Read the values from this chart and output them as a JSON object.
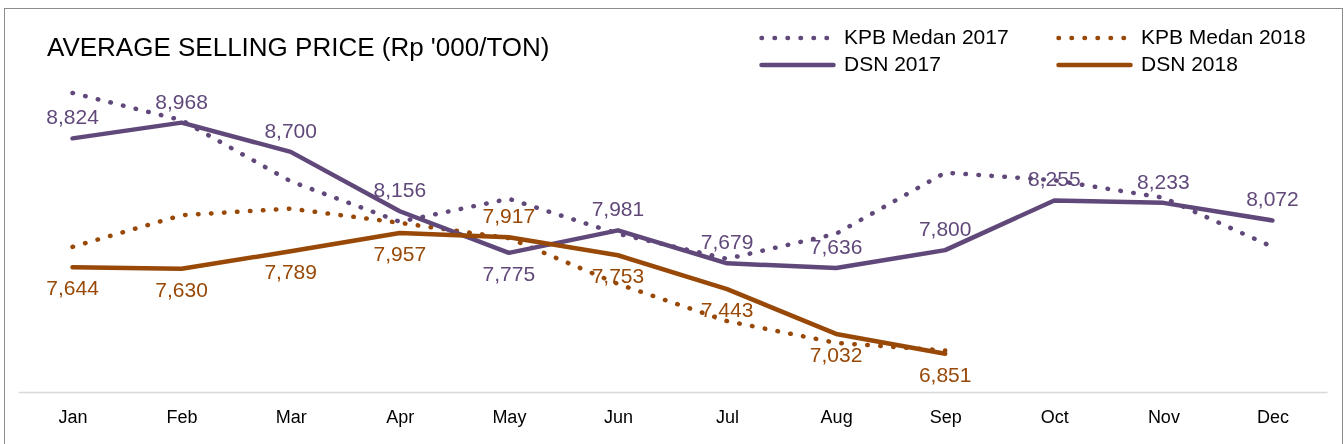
{
  "chart_data": {
    "type": "line",
    "title": "AVERAGE SELLING PRICE (Rp '000/TON)",
    "categories": [
      "Jan",
      "Feb",
      "Mar",
      "Apr",
      "May",
      "Jun",
      "Jul",
      "Aug",
      "Sep",
      "Oct",
      "Nov",
      "Dec"
    ],
    "series": [
      {
        "name": "KPB Medan 2017",
        "color": "#60497a",
        "line_style": "dotted",
        "values": [
          9240,
          8990,
          8430,
          8060,
          8270,
          7950,
          7720,
          7950,
          8510,
          8440,
          8280,
          7830
        ]
      },
      {
        "name": "KPB Medan 2018",
        "color": "#984807",
        "line_style": "dotted",
        "values": [
          7830,
          8120,
          8180,
          8050,
          7910,
          7490,
          7150,
          6950,
          6880,
          null,
          null,
          null
        ]
      },
      {
        "name": "DSN 2017",
        "color": "#60497a",
        "line_style": "solid",
        "values": [
          8824,
          8968,
          8700,
          8156,
          7775,
          7981,
          7679,
          7636,
          7800,
          8255,
          8233,
          8072
        ],
        "value_labels": [
          "8,824",
          "8,968",
          "8,700",
          "8,156",
          "7,775",
          "7,981",
          "7,679",
          "7,636",
          "7,800",
          "8,255",
          "8,233",
          "8,072"
        ]
      },
      {
        "name": "DSN 2018",
        "color": "#984807",
        "line_style": "solid",
        "values": [
          7644,
          7630,
          7789,
          7957,
          7917,
          7753,
          7443,
          7032,
          6851,
          null,
          null,
          null
        ],
        "value_labels": [
          "7,644",
          "7,630",
          "7,789",
          "7,957",
          "7,917",
          "7,753",
          "7,443",
          "7,032",
          "6,851",
          null,
          null,
          null
        ]
      }
    ],
    "ylim": [
      6500,
      10000
    ],
    "tick_labels": "x",
    "legend": "top right"
  }
}
